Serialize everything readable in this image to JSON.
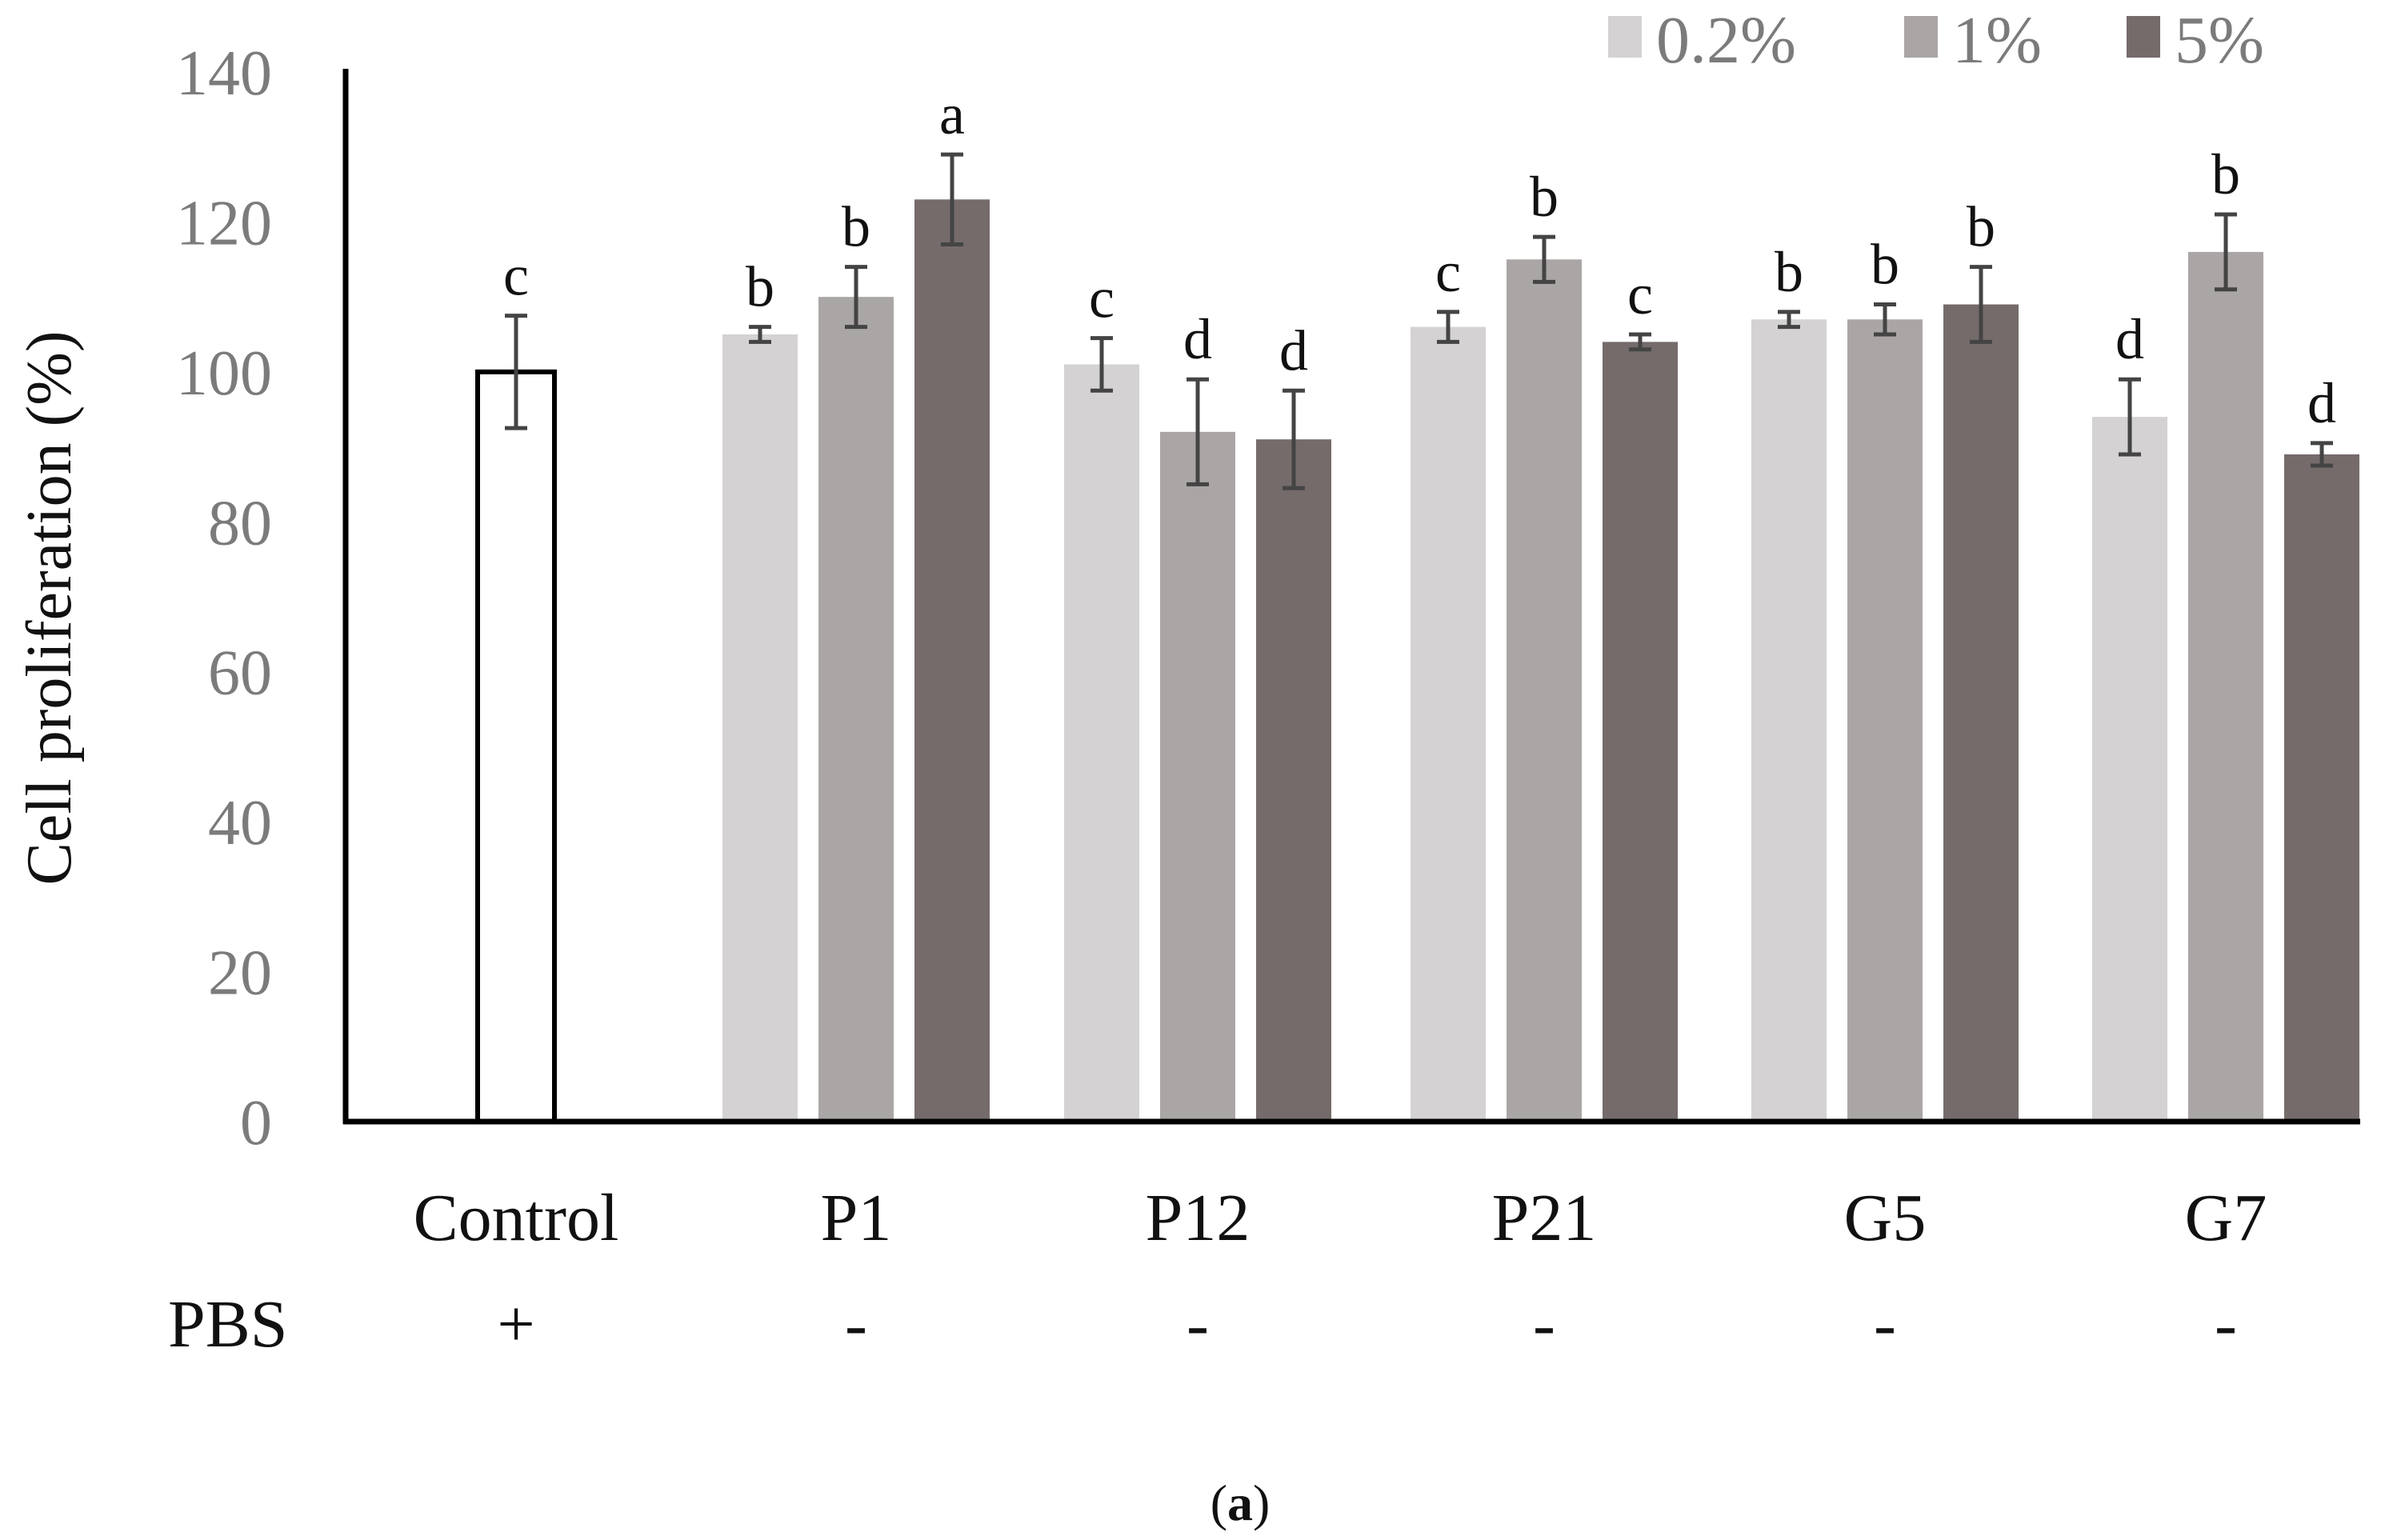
{
  "chart_data": {
    "type": "bar",
    "ylabel": "Cell proliferation (%)",
    "ylim": [
      0,
      140
    ],
    "yticks": [
      "0",
      "20",
      "40",
      "60",
      "80",
      "100",
      "120",
      "140"
    ],
    "legend_position": "top-right",
    "control": {
      "category": "Control",
      "value": 100,
      "error": 7.5,
      "significance": "c",
      "color": "#ffffff",
      "edge_color": "#000000"
    },
    "categories": [
      "P1",
      "P12",
      "P21",
      "G5",
      "G7"
    ],
    "series": [
      {
        "name": "0.2%",
        "color": "#d4d2d2",
        "values": [
          105,
          101,
          106,
          107,
          94
        ],
        "errors": [
          1,
          3.5,
          2,
          1,
          5
        ],
        "significance": [
          "b",
          "c",
          "c",
          "b",
          "d"
        ]
      },
      {
        "name": "1%",
        "color": "#aaa6a5",
        "values": [
          110,
          92,
          115,
          107,
          116
        ],
        "errors": [
          4,
          7,
          3,
          2,
          5
        ],
        "significance": [
          "b",
          "d",
          "b",
          "b",
          "b"
        ]
      },
      {
        "name": "5%",
        "color": "#756b6b",
        "values": [
          123,
          91,
          104,
          109,
          89
        ],
        "errors": [
          6,
          6.5,
          1,
          5,
          1.5
        ],
        "significance": [
          "a",
          "d",
          "c",
          "b",
          "d"
        ]
      }
    ],
    "pbs_row": {
      "label": "PBS",
      "values": [
        "+",
        "-",
        "-",
        "-",
        "-",
        "-"
      ]
    },
    "panel_label": {
      "open": "(",
      "letter": "a",
      "close": ")"
    }
  }
}
